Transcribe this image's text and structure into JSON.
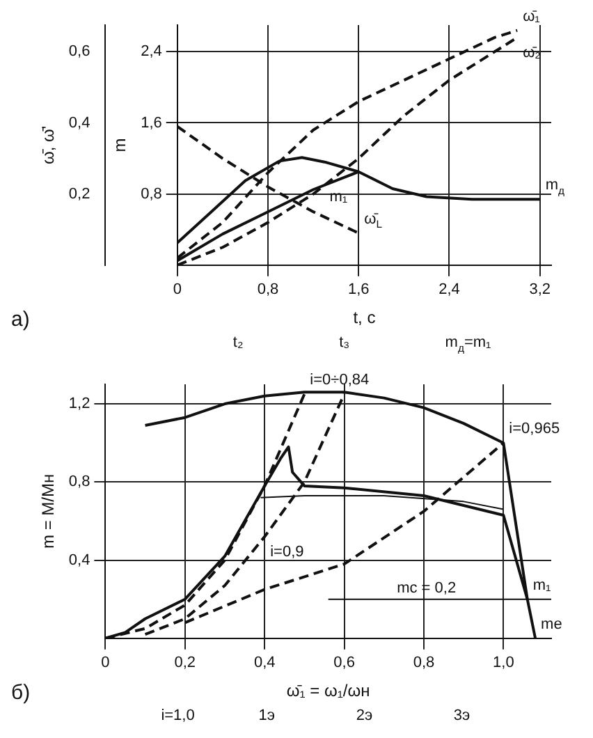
{
  "chart_data": [
    {
      "type": "line",
      "title": "а)",
      "xlabel": "t, c",
      "ylabel": "m",
      "y2label": "ω̄, ω̄'",
      "xlim": [
        0,
        3.3
      ],
      "xticks": [
        0,
        {
          "value": 0.8,
          "label": "0,8"
        },
        {
          "value": 1.6,
          "label": "1,6"
        },
        {
          "value": 2.4,
          "label": "2,4"
        },
        {
          "value": 3.2,
          "label": "3,2"
        }
      ],
      "ylim": [
        0,
        2.7
      ],
      "yticks": [
        {
          "value": 0.8,
          "label": "0,8"
        },
        {
          "value": 1.6,
          "label": "1,6"
        },
        {
          "value": 2.4,
          "label": "2,4"
        }
      ],
      "y2lim": [
        0,
        0.675
      ],
      "y2ticks": [
        {
          "value": 0.2,
          "label": "0,2"
        },
        {
          "value": 0.4,
          "label": "0,4"
        },
        {
          "value": 0.6,
          "label": "0,6"
        }
      ],
      "grid": true,
      "legend": false,
      "marker": "none",
      "annotations": [
        "t₂",
        "t₃",
        "m$_{д}$=m₁"
      ],
      "series": [
        {
          "name": "m$_{д}$",
          "color": "#111111",
          "line_style": "solid",
          "x": [
            0,
            0.3,
            0.6,
            0.9,
            1.1,
            1.3,
            1.6,
            1.9,
            2.2,
            2.6,
            3.2
          ],
          "values": [
            0.25,
            0.6,
            0.95,
            1.17,
            1.21,
            1.16,
            1.05,
            0.86,
            0.77,
            0.74,
            0.74
          ]
        },
        {
          "name": "m₁",
          "color": "#111111",
          "line_style": "solid",
          "x": [
            0,
            0.4,
            0.8,
            1.2,
            1.6
          ],
          "values": [
            0.05,
            0.35,
            0.6,
            0.85,
            1.05
          ]
        },
        {
          "name": "ω̄₁",
          "color": "#111111",
          "line_style": "dashed",
          "axis": "y2",
          "x": [
            0,
            0.4,
            0.8,
            1.2,
            1.6,
            2.0,
            2.4,
            2.8,
            3.0
          ],
          "values": [
            0.02,
            0.12,
            0.26,
            0.38,
            0.46,
            0.52,
            0.58,
            0.64,
            0.66
          ]
        },
        {
          "name": "ω̄₂",
          "color": "#111111",
          "line_style": "dashed",
          "axis": "y2",
          "x": [
            0,
            0.4,
            0.8,
            1.2,
            1.6,
            2.0,
            2.4,
            2.8,
            3.0
          ],
          "values": [
            0,
            0.05,
            0.12,
            0.2,
            0.3,
            0.42,
            0.52,
            0.6,
            0.64
          ]
        },
        {
          "name": "ω̄$_{L}$",
          "color": "#111111",
          "line_style": "dashed",
          "axis": "y2",
          "x": [
            0,
            0.4,
            0.8,
            1.2,
            1.6
          ],
          "values": [
            0.39,
            0.3,
            0.22,
            0.15,
            0.09
          ]
        }
      ]
    },
    {
      "type": "line",
      "title": "б)",
      "xlabel": "ω̄₁ = ω₁/ωн",
      "ylabel": "m = M/Mн",
      "xlim": [
        0,
        1.12
      ],
      "xticks": [
        0,
        {
          "value": 0.2,
          "label": "0,2"
        },
        {
          "value": 0.4,
          "label": "0,4"
        },
        {
          "value": 0.6,
          "label": "0,6"
        },
        {
          "value": 0.8,
          "label": "0,8"
        },
        {
          "value": 1.0,
          "label": "1,0"
        }
      ],
      "ylim": [
        0,
        1.3
      ],
      "yticks": [
        {
          "value": 0.4,
          "label": "0,4"
        },
        {
          "value": 0.8,
          "label": "0,8"
        },
        {
          "value": 1.2,
          "label": "1,2"
        }
      ],
      "grid": true,
      "legend": false,
      "marker": "none",
      "annotations": [
        "i=1,0",
        "1э",
        "2э",
        "3э"
      ],
      "ref_lines": [
        {
          "axis": "y",
          "value": 0.2,
          "label": "mс = 0,2"
        }
      ],
      "series": [
        {
          "name": "mе",
          "color": "#111111",
          "line_style": "solid",
          "x": [
            0.1,
            0.2,
            0.3,
            0.4,
            0.5,
            0.6,
            0.7,
            0.8,
            0.9,
            1.0,
            1.06,
            1.08
          ],
          "values": [
            1.09,
            1.13,
            1.2,
            1.24,
            1.26,
            1.26,
            1.23,
            1.18,
            1.1,
            1.0,
            0.2,
            0
          ]
        },
        {
          "name": "m₁",
          "color": "#111111",
          "line_style": "solid",
          "x": [
            0,
            0.05,
            0.1,
            0.2,
            0.3,
            0.4,
            0.44,
            0.46,
            0.47,
            0.5,
            0.6,
            0.8,
            1.0,
            1.06
          ],
          "values": [
            0,
            0.03,
            0.1,
            0.2,
            0.42,
            0.78,
            0.92,
            0.98,
            0.85,
            0.78,
            0.77,
            0.73,
            0.63,
            0.2
          ]
        },
        {
          "color": "#111111",
          "line_style": "solid",
          "x": [
            0.39,
            0.5,
            0.7,
            0.9,
            1.0
          ],
          "values": [
            0.72,
            0.73,
            0.73,
            0.7,
            0.66
          ]
        },
        {
          "name": "i=0÷0,84",
          "color": "#111111",
          "line_style": "dashed",
          "x": [
            0,
            0.1,
            0.2,
            0.3,
            0.4,
            0.5
          ],
          "values": [
            0,
            0.05,
            0.17,
            0.4,
            0.78,
            1.25
          ]
        },
        {
          "name": "i=0,9",
          "color": "#111111",
          "line_style": "dashed",
          "x": [
            0.1,
            0.2,
            0.3,
            0.4,
            0.5,
            0.6
          ],
          "values": [
            0.02,
            0.1,
            0.27,
            0.52,
            0.8,
            1.25
          ]
        },
        {
          "name": "i=0,965",
          "color": "#111111",
          "line_style": "dashed",
          "x": [
            0.2,
            0.4,
            0.6,
            0.8,
            1.0
          ],
          "values": [
            0.08,
            0.25,
            0.38,
            0.65,
            1.0
          ]
        }
      ]
    }
  ]
}
